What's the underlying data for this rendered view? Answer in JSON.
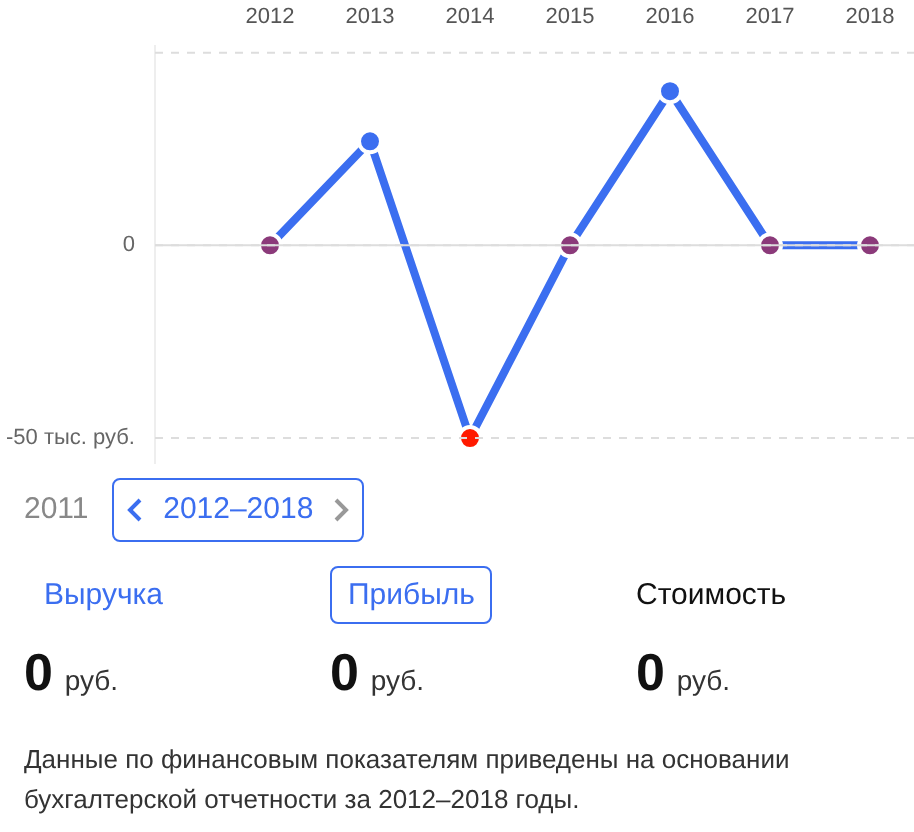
{
  "chart_data": {
    "type": "line",
    "categories": [
      "2012",
      "2013",
      "2014",
      "2015",
      "2016",
      "2017",
      "2018"
    ],
    "series": [
      {
        "color": "#3b6ef0",
        "colors": [
          "#8b3a7a",
          "#3b6ef0",
          "#ff1a00",
          "#8b3a7a",
          "#3b6ef0",
          "#8b3a7a",
          "#8b3a7a"
        ],
        "values": [
          0,
          27,
          -50,
          0,
          40,
          0,
          0
        ]
      }
    ],
    "ylim": [
      -57,
      52
    ],
    "yticks": [
      {
        "value": -50,
        "label": "-50 тыс. руб."
      },
      0,
      {
        "value": 50,
        "label": null
      }
    ],
    "ref_lines": [
      {
        "axis": "y",
        "value": 0,
        "color": "#dddddd"
      }
    ],
    "grid": "y",
    "marker": "circle",
    "annotations": [
      "2011",
      "2012–2018",
      "Выручка",
      "Прибыль",
      "Стоимость",
      "0 руб.",
      "0 руб.",
      "0 руб.",
      "Данные по финансовым показателям приведены на основании бухгалтерской отчетности за 2012–2018 годы."
    ]
  }
}
